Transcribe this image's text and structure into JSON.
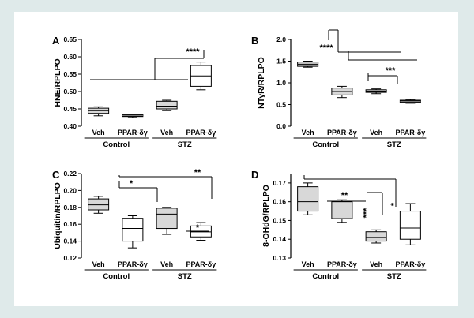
{
  "chart_data": [
    {
      "panel": "A",
      "type": "box",
      "ylabel": "HNE/RPLPO",
      "ylim": [
        0.4,
        0.65
      ],
      "yticks": [
        "0.40",
        "0.45",
        "0.50",
        "0.55",
        "0.60",
        "0.65"
      ],
      "categories": [
        "Veh",
        "PPAR-δγ",
        "Veh",
        "PPAR-δγ"
      ],
      "groups": [
        "Control",
        "STZ"
      ],
      "boxes": [
        {
          "min": 0.43,
          "q1": 0.437,
          "median": 0.445,
          "q3": 0.452,
          "max": 0.456,
          "fill": "#d8d8d8"
        },
        {
          "min": 0.425,
          "q1": 0.428,
          "median": 0.431,
          "q3": 0.433,
          "max": 0.435,
          "fill": "#1a1a1a"
        },
        {
          "min": 0.445,
          "q1": 0.45,
          "median": 0.458,
          "q3": 0.472,
          "max": 0.475,
          "fill": "#d8d8d8"
        },
        {
          "min": 0.505,
          "q1": 0.515,
          "median": 0.545,
          "q3": 0.575,
          "max": 0.585,
          "fill": "#ffffff"
        }
      ],
      "annotations": [
        "****"
      ]
    },
    {
      "panel": "B",
      "type": "box",
      "ylabel": "NTyR/RPLPO",
      "ylim": [
        0.0,
        2.0
      ],
      "yticks": [
        "0.0",
        "0.5",
        "1.0",
        "1.5",
        "2.0"
      ],
      "categories": [
        "Veh",
        "PPAR-δγ",
        "Veh",
        "PPAR-δγ"
      ],
      "groups": [
        "Control",
        "STZ"
      ],
      "boxes": [
        {
          "min": 1.36,
          "q1": 1.38,
          "median": 1.43,
          "q3": 1.48,
          "max": 1.5,
          "fill": "#d8d8d8"
        },
        {
          "min": 0.66,
          "q1": 0.72,
          "median": 0.8,
          "q3": 0.88,
          "max": 0.92,
          "fill": "#d8d8d8"
        },
        {
          "min": 0.75,
          "q1": 0.78,
          "median": 0.81,
          "q3": 0.84,
          "max": 0.86,
          "fill": "#d8d8d8"
        },
        {
          "min": 0.53,
          "q1": 0.55,
          "median": 0.57,
          "q3": 0.6,
          "max": 0.62,
          "fill": "#1a1a1a"
        }
      ],
      "annotations": [
        "****",
        "***"
      ]
    },
    {
      "panel": "C",
      "type": "box",
      "ylabel": "Ubiquitin/RPLPO",
      "ylim": [
        0.12,
        0.22
      ],
      "yticks": [
        "0.12",
        "0.14",
        "0.16",
        "0.18",
        "0.20",
        "0.22"
      ],
      "categories": [
        "Veh",
        "PPAR-δγ",
        "Veh",
        "PPAR-δγ"
      ],
      "groups": [
        "Control",
        "STZ"
      ],
      "boxes": [
        {
          "min": 0.173,
          "q1": 0.177,
          "median": 0.183,
          "q3": 0.19,
          "max": 0.193,
          "fill": "#d8d8d8"
        },
        {
          "min": 0.132,
          "q1": 0.14,
          "median": 0.155,
          "q3": 0.167,
          "max": 0.17,
          "fill": "#ffffff"
        },
        {
          "min": 0.148,
          "q1": 0.155,
          "median": 0.172,
          "q3": 0.179,
          "max": 0.18,
          "fill": "#d8d8d8"
        },
        {
          "min": 0.141,
          "q1": 0.145,
          "median": 0.151,
          "q3": 0.158,
          "max": 0.162,
          "fill": "#ffffff"
        }
      ],
      "annotations": [
        "*",
        "**",
        "*"
      ]
    },
    {
      "panel": "D",
      "type": "box",
      "ylabel": "8-OHdG/RPLPO",
      "ylim": [
        0.13,
        0.175
      ],
      "yticks": [
        "0.13",
        "0.14",
        "0.15",
        "0.16",
        "0.17"
      ],
      "categories": [
        "Veh",
        "PPAR-δγ",
        "Veh",
        "PPAR-δγ"
      ],
      "groups": [
        "Control",
        "STZ"
      ],
      "boxes": [
        {
          "min": 0.153,
          "q1": 0.155,
          "median": 0.16,
          "q3": 0.168,
          "max": 0.17,
          "fill": "#d8d8d8"
        },
        {
          "min": 0.149,
          "q1": 0.151,
          "median": 0.155,
          "q3": 0.16,
          "max": 0.161,
          "fill": "#d8d8d8"
        },
        {
          "min": 0.138,
          "q1": 0.139,
          "median": 0.141,
          "q3": 0.144,
          "max": 0.145,
          "fill": "#d8d8d8"
        },
        {
          "min": 0.137,
          "q1": 0.14,
          "median": 0.146,
          "q3": 0.155,
          "max": 0.159,
          "fill": "#ffffff"
        }
      ],
      "annotations": [
        "**",
        "***",
        "*"
      ]
    }
  ]
}
